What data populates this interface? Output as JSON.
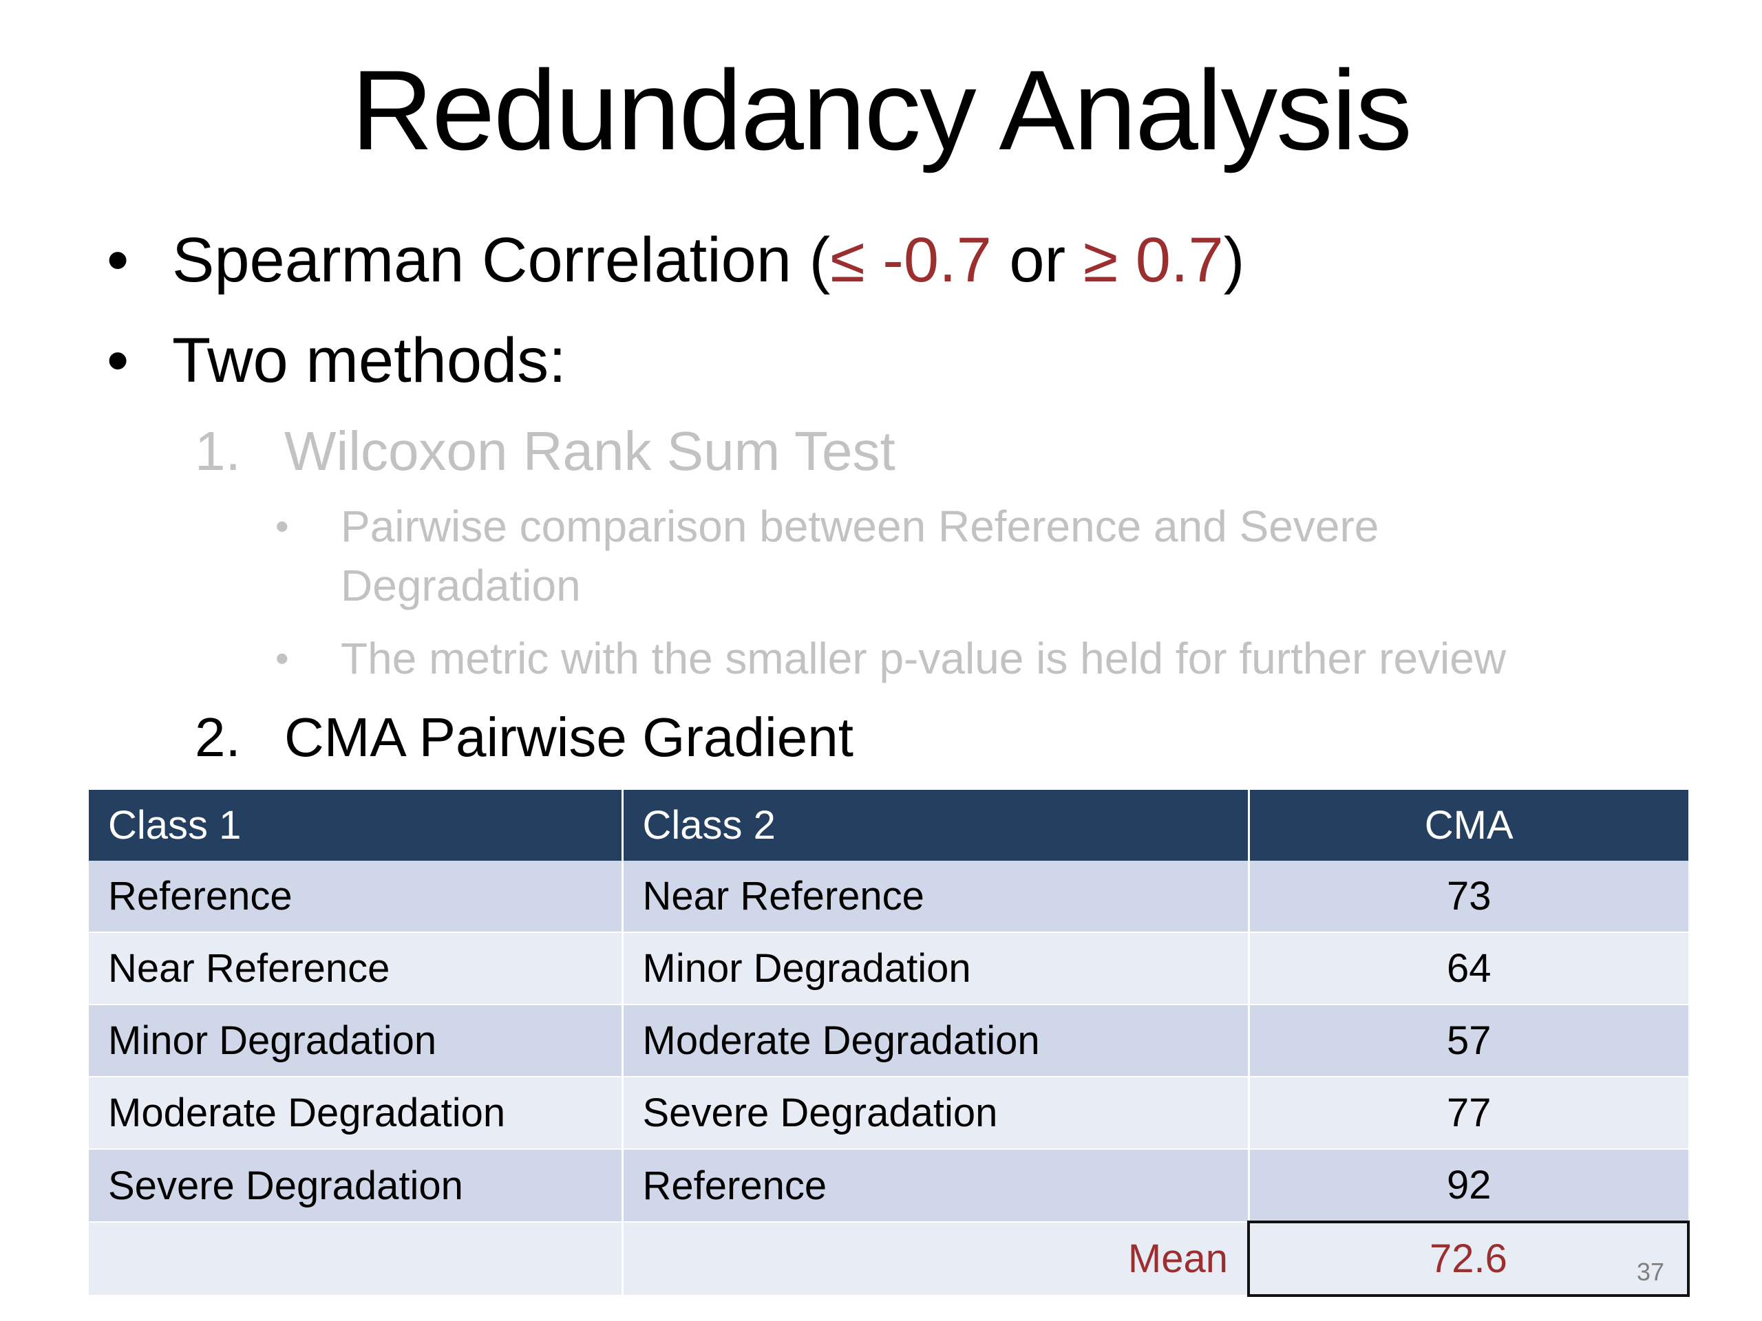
{
  "title": "Redundancy Analysis",
  "bullets": {
    "spearman": {
      "prefix": "Spearman Correlation (",
      "lower": "≤ -0.7",
      "mid": " or ",
      "upper": "≥ 0.7",
      "suffix": ")"
    },
    "two_methods": "Two methods:"
  },
  "methods": [
    {
      "number": "1.",
      "label": "Wilcoxon Rank Sum Test",
      "subpoints": [
        "Pairwise comparison between Reference and Severe Degradation",
        "The metric with the smaller p-value is held for further review"
      ]
    },
    {
      "number": "2.",
      "label": "CMA Pairwise Gradient"
    }
  ],
  "table": {
    "headers": [
      "Class 1",
      "Class 2",
      "CMA"
    ],
    "rows": [
      [
        "Reference",
        "Near Reference",
        "73"
      ],
      [
        "Near Reference",
        "Minor Degradation",
        "64"
      ],
      [
        "Minor Degradation",
        "Moderate Degradation",
        "57"
      ],
      [
        "Moderate Degradation",
        "Severe Degradation",
        "77"
      ],
      [
        "Severe Degradation",
        "Reference",
        "92"
      ]
    ],
    "mean_label": "Mean",
    "mean_value": "72.6"
  },
  "page_number": "37",
  "colors": {
    "accent_red": "#9b2f2f",
    "header_navy": "#243f60",
    "row_dark": "#cfd7e8",
    "row_light": "#e8ecf4",
    "faded_text": "#c2c2c2"
  }
}
